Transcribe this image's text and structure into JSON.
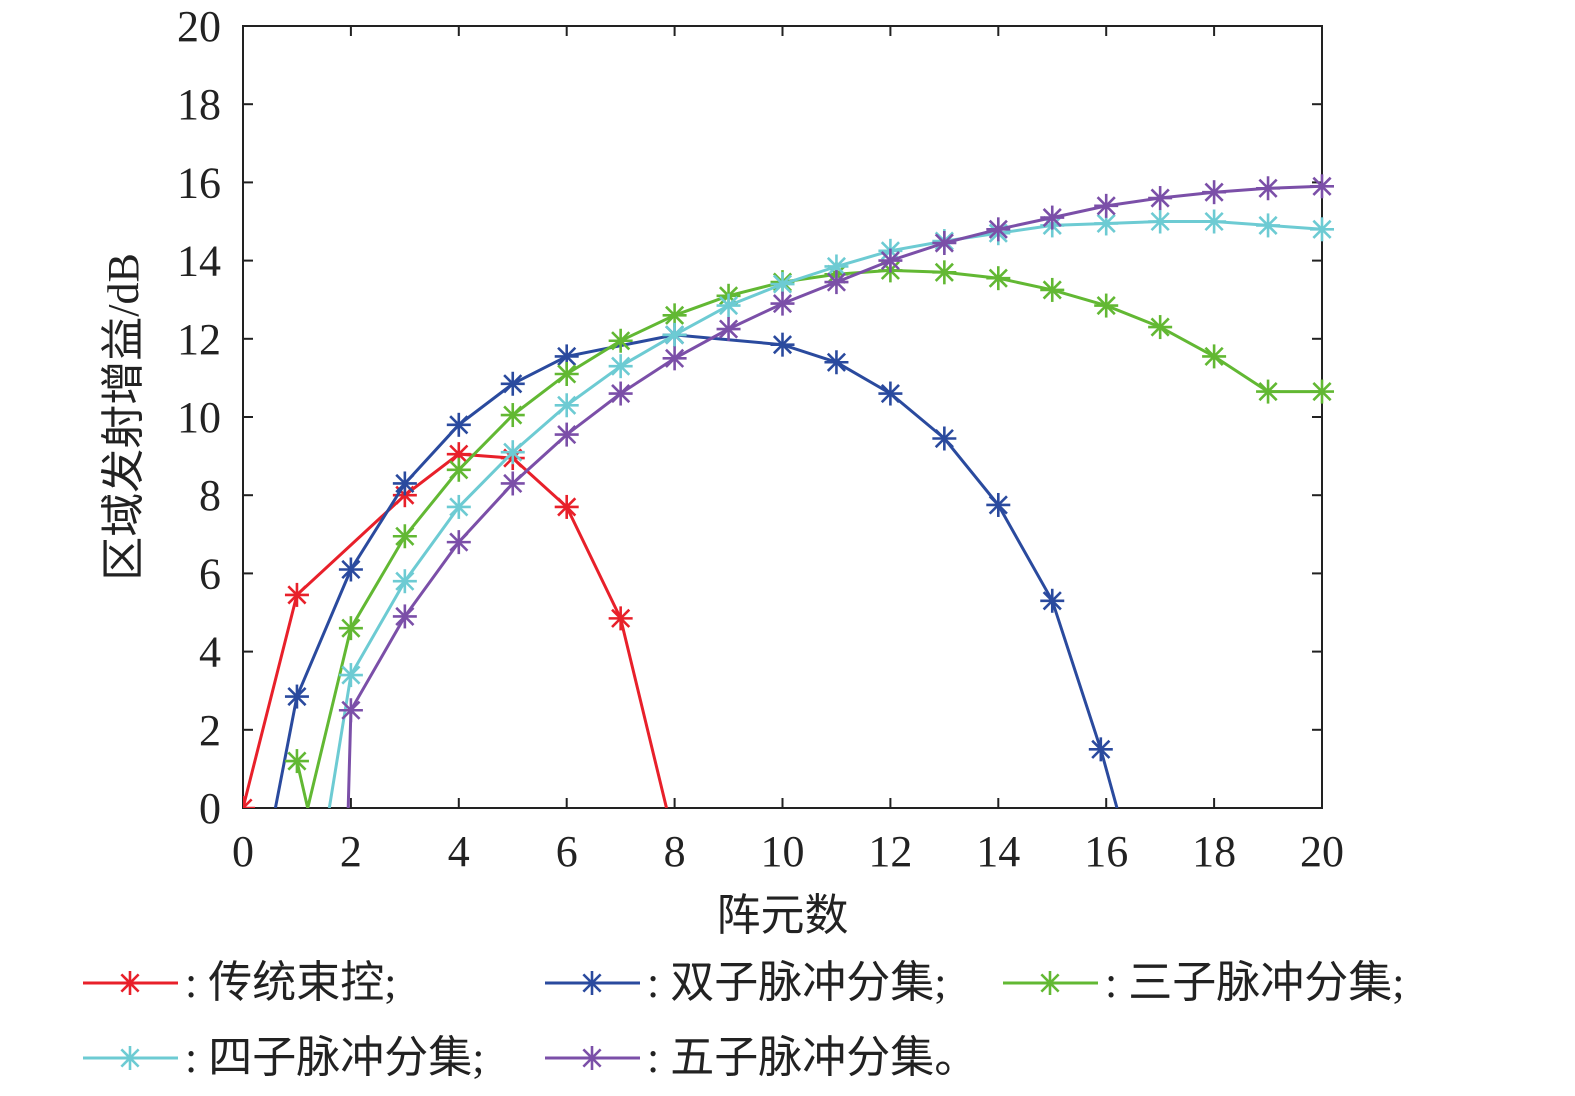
{
  "chart_data": {
    "type": "line",
    "xlabel": "阵元数",
    "ylabel": "区域发射增益/dB",
    "xlim": [
      0,
      20
    ],
    "ylim": [
      0,
      20
    ],
    "xticks": [
      "0",
      "2",
      "4",
      "6",
      "8",
      "10",
      "12",
      "14",
      "16",
      "18",
      "20"
    ],
    "yticks": [
      "0",
      "2",
      "4",
      "6",
      "8",
      "10",
      "12",
      "14",
      "16",
      "18",
      "20"
    ],
    "grid": false,
    "legend_position": "bottom",
    "marker": "asterisk",
    "series": [
      {
        "name": "传统束控;",
        "color": "#e8202a",
        "x": [
          0,
          1,
          3,
          4,
          5,
          6,
          7,
          7.85
        ],
        "y": [
          0,
          5.45,
          8.0,
          9.05,
          8.95,
          7.7,
          4.85,
          0
        ]
      },
      {
        "name": "双子脉冲分集;",
        "color": "#2a4a9e",
        "x": [
          0.6,
          1,
          2,
          3,
          4,
          5,
          6,
          8,
          10,
          11,
          12,
          13,
          14,
          15,
          15.9,
          16.2
        ],
        "y": [
          0,
          2.85,
          6.1,
          8.3,
          9.8,
          10.85,
          11.55,
          12.1,
          11.85,
          11.4,
          10.6,
          9.45,
          7.75,
          5.3,
          1.5,
          0
        ]
      },
      {
        "name": "三子脉冲分集;",
        "color": "#62b833",
        "x": [
          1.2,
          1,
          2,
          3,
          4,
          5,
          6,
          7,
          8,
          9,
          10,
          11,
          12,
          13,
          14,
          15,
          16,
          17,
          18,
          19,
          20
        ],
        "y": [
          0,
          1.2,
          4.6,
          6.95,
          8.65,
          10.05,
          11.1,
          11.95,
          12.6,
          13.1,
          13.45,
          13.65,
          13.75,
          13.7,
          13.55,
          13.25,
          12.85,
          12.3,
          11.55,
          10.65,
          10.65
        ]
      },
      {
        "name": "四子脉冲分集;",
        "color": "#6dcbd3",
        "x": [
          1.6,
          2,
          3,
          4,
          5,
          6,
          7,
          8,
          9,
          10,
          11,
          12,
          13,
          14,
          15,
          16,
          17,
          18,
          19,
          20
        ],
        "y": [
          0,
          3.4,
          5.8,
          7.7,
          9.1,
          10.3,
          11.3,
          12.1,
          12.85,
          13.4,
          13.85,
          14.25,
          14.5,
          14.7,
          14.9,
          14.95,
          15.0,
          15.0,
          14.9,
          14.8
        ]
      },
      {
        "name": "五子脉冲分集。",
        "color": "#7b4fa8",
        "x": [
          1.95,
          2,
          3,
          4,
          5,
          6,
          7,
          8,
          9,
          10,
          11,
          12,
          13,
          14,
          15,
          16,
          17,
          18,
          19,
          20
        ],
        "y": [
          0,
          2.5,
          4.9,
          6.8,
          8.3,
          9.55,
          10.6,
          11.5,
          12.25,
          12.9,
          13.45,
          14.0,
          14.45,
          14.8,
          15.1,
          15.4,
          15.6,
          15.75,
          15.85,
          15.9
        ]
      }
    ]
  }
}
